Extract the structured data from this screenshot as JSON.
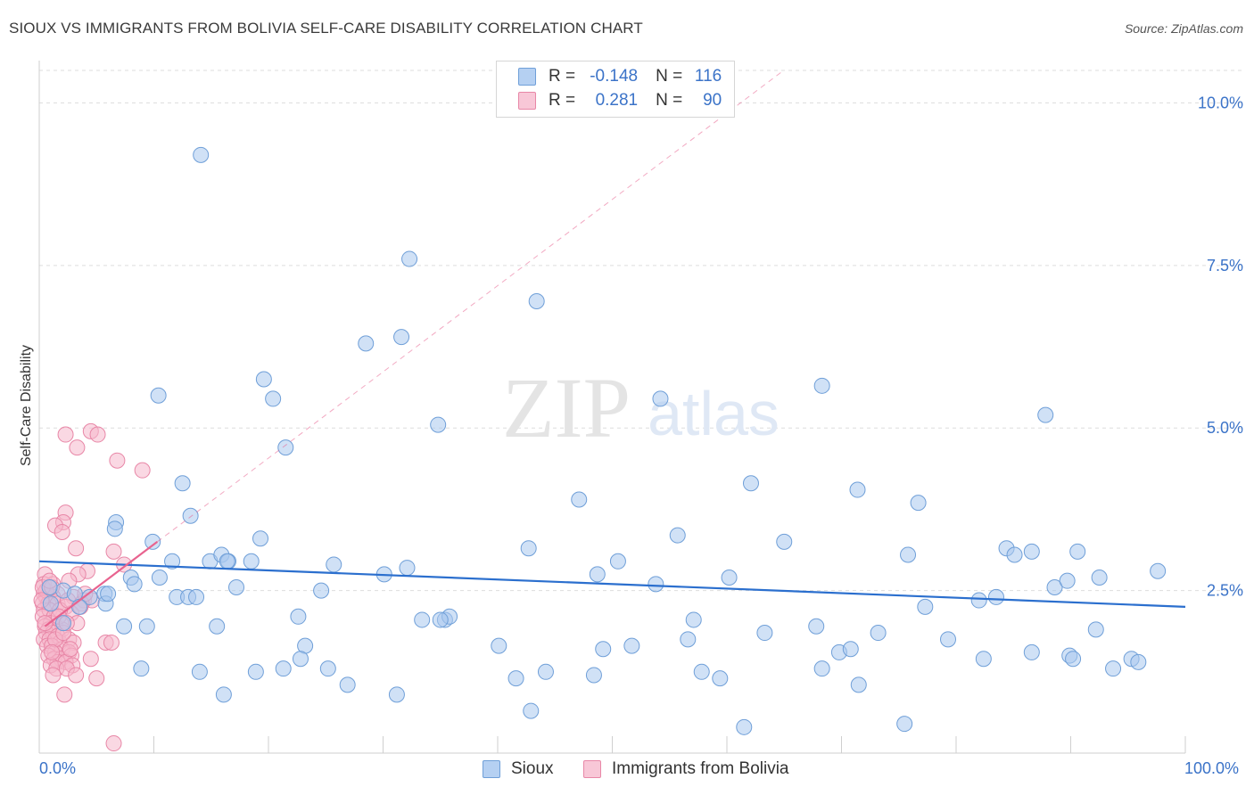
{
  "title": "SIOUX VS IMMIGRANTS FROM BOLIVIA SELF-CARE DISABILITY CORRELATION CHART",
  "source": "Source: ZipAtlas.com",
  "watermark": {
    "zip": "ZIP",
    "atlas": "atlas"
  },
  "legend": {
    "rows": [
      {
        "r_label": "R =",
        "r_value": "-0.148",
        "n_label": "N =",
        "n_value": "116"
      },
      {
        "r_label": "R =",
        "r_value": "0.281",
        "n_label": "N =",
        "n_value": "90"
      }
    ]
  },
  "bottom_legend": [
    "Sioux",
    "Immigrants from Bolivia"
  ],
  "x_labels": {
    "min": "0.0%",
    "max": "100.0%"
  },
  "chart_data": {
    "type": "scatter",
    "title": "SIOUX VS IMMIGRANTS FROM BOLIVIA SELF-CARE DISABILITY CORRELATION CHART",
    "xlabel": "",
    "ylabel": "Self-Care Disability",
    "xlim": [
      0,
      100
    ],
    "ylim": [
      0,
      10.5
    ],
    "y_ticks": [
      2.5,
      5.0,
      7.5,
      10.0
    ],
    "y_tick_labels": [
      "2.5%",
      "5.0%",
      "7.5%",
      "10.0%"
    ],
    "x_tick_labels": [
      "0.0%",
      "100.0%"
    ],
    "grid": true,
    "colors": {
      "sioux_fill": "#a9c8ef",
      "sioux_stroke": "#6f9fd8",
      "sioux_line": "#2b6fce",
      "bolivia_fill": "#f5b8cc",
      "bolivia_stroke": "#e887a7",
      "bolivia_line": "#e8638f",
      "axis_text": "#3b73c8",
      "grid": "#dddddd"
    },
    "series": [
      {
        "name": "Sioux",
        "trend": {
          "x": [
            0,
            100
          ],
          "y": [
            2.95,
            2.25
          ]
        },
        "points": [
          [
            14.1,
            9.2
          ],
          [
            32.3,
            7.6
          ],
          [
            43.4,
            6.95
          ],
          [
            31.6,
            6.4
          ],
          [
            28.5,
            6.3
          ],
          [
            19.6,
            5.75
          ],
          [
            20.4,
            5.45
          ],
          [
            10.4,
            5.5
          ],
          [
            34.8,
            5.05
          ],
          [
            21.5,
            4.7
          ],
          [
            54.2,
            5.45
          ],
          [
            68.3,
            5.65
          ],
          [
            87.8,
            5.2
          ],
          [
            12.5,
            4.15
          ],
          [
            47.1,
            3.9
          ],
          [
            62.1,
            4.15
          ],
          [
            71.4,
            4.05
          ],
          [
            76.7,
            3.85
          ],
          [
            13.2,
            3.65
          ],
          [
            6.7,
            3.55
          ],
          [
            6.6,
            3.45
          ],
          [
            9.9,
            3.25
          ],
          [
            19.3,
            3.3
          ],
          [
            14.9,
            2.95
          ],
          [
            15.9,
            3.05
          ],
          [
            16.5,
            2.95
          ],
          [
            18.5,
            2.95
          ],
          [
            11.6,
            2.95
          ],
          [
            25.7,
            2.9
          ],
          [
            32.1,
            2.85
          ],
          [
            42.7,
            3.15
          ],
          [
            50.5,
            2.95
          ],
          [
            55.7,
            3.35
          ],
          [
            65.0,
            3.25
          ],
          [
            75.8,
            3.05
          ],
          [
            84.4,
            3.15
          ],
          [
            85.1,
            3.05
          ],
          [
            86.6,
            3.1
          ],
          [
            90.6,
            3.1
          ],
          [
            8.0,
            2.7
          ],
          [
            10.5,
            2.7
          ],
          [
            8.3,
            2.6
          ],
          [
            30.1,
            2.75
          ],
          [
            48.7,
            2.75
          ],
          [
            60.2,
            2.7
          ],
          [
            92.5,
            2.7
          ],
          [
            97.6,
            2.8
          ],
          [
            17.2,
            2.55
          ],
          [
            2.1,
            2.5
          ],
          [
            0.9,
            2.55
          ],
          [
            3.1,
            2.45
          ],
          [
            4.4,
            2.4
          ],
          [
            5.7,
            2.45
          ],
          [
            12.0,
            2.4
          ],
          [
            13.0,
            2.4
          ],
          [
            24.6,
            2.5
          ],
          [
            1.0,
            2.3
          ],
          [
            3.5,
            2.25
          ],
          [
            5.8,
            2.3
          ],
          [
            6.0,
            2.45
          ],
          [
            53.8,
            2.6
          ],
          [
            88.6,
            2.55
          ],
          [
            89.7,
            2.65
          ],
          [
            77.3,
            2.25
          ],
          [
            82.0,
            2.35
          ],
          [
            83.5,
            2.4
          ],
          [
            2.1,
            2.0
          ],
          [
            7.4,
            1.95
          ],
          [
            9.4,
            1.95
          ],
          [
            15.5,
            1.95
          ],
          [
            22.6,
            2.1
          ],
          [
            33.4,
            2.05
          ],
          [
            35.4,
            2.05
          ],
          [
            35.8,
            2.1
          ],
          [
            57.1,
            2.05
          ],
          [
            63.3,
            1.85
          ],
          [
            67.8,
            1.95
          ],
          [
            73.2,
            1.85
          ],
          [
            92.2,
            1.9
          ],
          [
            23.2,
            1.65
          ],
          [
            40.1,
            1.65
          ],
          [
            49.2,
            1.6
          ],
          [
            51.7,
            1.65
          ],
          [
            56.6,
            1.75
          ],
          [
            79.3,
            1.75
          ],
          [
            22.8,
            1.45
          ],
          [
            69.8,
            1.55
          ],
          [
            70.8,
            1.6
          ],
          [
            82.4,
            1.45
          ],
          [
            86.6,
            1.55
          ],
          [
            89.9,
            1.5
          ],
          [
            90.2,
            1.45
          ],
          [
            95.3,
            1.45
          ],
          [
            95.9,
            1.4
          ],
          [
            8.9,
            1.3
          ],
          [
            14.0,
            1.25
          ],
          [
            18.9,
            1.25
          ],
          [
            21.3,
            1.3
          ],
          [
            25.2,
            1.3
          ],
          [
            44.2,
            1.25
          ],
          [
            57.8,
            1.25
          ],
          [
            68.3,
            1.3
          ],
          [
            93.7,
            1.3
          ],
          [
            41.6,
            1.15
          ],
          [
            48.4,
            1.2
          ],
          [
            59.4,
            1.15
          ],
          [
            26.9,
            1.05
          ],
          [
            71.5,
            1.05
          ],
          [
            16.1,
            0.9
          ],
          [
            31.2,
            0.9
          ],
          [
            42.9,
            0.65
          ],
          [
            61.5,
            0.4
          ],
          [
            75.5,
            0.45
          ],
          [
            16.4,
            2.95
          ],
          [
            35.0,
            2.05
          ],
          [
            13.7,
            2.4
          ]
        ]
      },
      {
        "name": "Immigrants from Bolivia",
        "trend": {
          "x": [
            0.5,
            10.3
          ],
          "y": [
            1.95,
            3.25
          ]
        },
        "points": [
          [
            2.3,
            4.9
          ],
          [
            4.5,
            4.95
          ],
          [
            5.1,
            4.9
          ],
          [
            3.3,
            4.7
          ],
          [
            6.8,
            4.5
          ],
          [
            9.0,
            4.35
          ],
          [
            2.3,
            3.7
          ],
          [
            2.1,
            3.55
          ],
          [
            1.4,
            3.5
          ],
          [
            2.0,
            3.4
          ],
          [
            3.2,
            3.15
          ],
          [
            6.5,
            3.1
          ],
          [
            7.4,
            2.9
          ],
          [
            4.2,
            2.8
          ],
          [
            3.4,
            2.75
          ],
          [
            0.5,
            2.75
          ],
          [
            1.2,
            2.6
          ],
          [
            2.6,
            2.65
          ],
          [
            0.4,
            2.6
          ],
          [
            1.6,
            2.45
          ],
          [
            0.4,
            2.45
          ],
          [
            0.6,
            2.4
          ],
          [
            1.2,
            2.4
          ],
          [
            3.0,
            2.4
          ],
          [
            3.9,
            2.35
          ],
          [
            4.6,
            2.35
          ],
          [
            0.3,
            2.3
          ],
          [
            0.8,
            2.3
          ],
          [
            1.6,
            2.3
          ],
          [
            2.3,
            2.25
          ],
          [
            3.7,
            2.3
          ],
          [
            0.4,
            2.2
          ],
          [
            0.9,
            2.2
          ],
          [
            2.8,
            2.15
          ],
          [
            0.3,
            2.1
          ],
          [
            1.3,
            2.1
          ],
          [
            1.9,
            2.0
          ],
          [
            1.0,
            2.0
          ],
          [
            0.5,
            1.95
          ],
          [
            1.4,
            1.95
          ],
          [
            2.0,
            1.9
          ],
          [
            0.8,
            1.9
          ],
          [
            0.6,
            1.85
          ],
          [
            1.2,
            1.85
          ],
          [
            1.6,
            1.8
          ],
          [
            0.4,
            1.75
          ],
          [
            0.9,
            1.75
          ],
          [
            1.8,
            1.7
          ],
          [
            2.6,
            1.75
          ],
          [
            3.0,
            1.7
          ],
          [
            0.7,
            1.65
          ],
          [
            1.1,
            1.65
          ],
          [
            2.0,
            1.6
          ],
          [
            1.4,
            1.55
          ],
          [
            2.6,
            1.55
          ],
          [
            0.8,
            1.5
          ],
          [
            1.3,
            1.45
          ],
          [
            1.9,
            1.45
          ],
          [
            2.8,
            1.5
          ],
          [
            1.6,
            1.4
          ],
          [
            2.3,
            1.4
          ],
          [
            1.0,
            1.35
          ],
          [
            2.9,
            1.35
          ],
          [
            1.5,
            1.3
          ],
          [
            2.4,
            1.3
          ],
          [
            1.2,
            1.2
          ],
          [
            3.2,
            1.2
          ],
          [
            5.0,
            1.15
          ],
          [
            2.2,
            0.9
          ],
          [
            6.5,
            0.15
          ],
          [
            5.8,
            1.7
          ],
          [
            6.3,
            1.7
          ],
          [
            4.5,
            1.45
          ],
          [
            0.6,
            2.5
          ],
          [
            0.3,
            2.55
          ],
          [
            1.1,
            2.55
          ],
          [
            1.8,
            2.2
          ],
          [
            2.5,
            2.35
          ],
          [
            0.5,
            2.0
          ],
          [
            1.4,
            1.75
          ],
          [
            2.1,
            1.85
          ],
          [
            3.3,
            2.0
          ],
          [
            3.6,
            2.25
          ],
          [
            0.2,
            2.35
          ],
          [
            0.9,
            2.65
          ],
          [
            1.7,
            2.1
          ],
          [
            2.4,
            2.0
          ],
          [
            1.1,
            1.55
          ],
          [
            2.7,
            1.6
          ],
          [
            4.0,
            2.45
          ]
        ]
      }
    ]
  }
}
